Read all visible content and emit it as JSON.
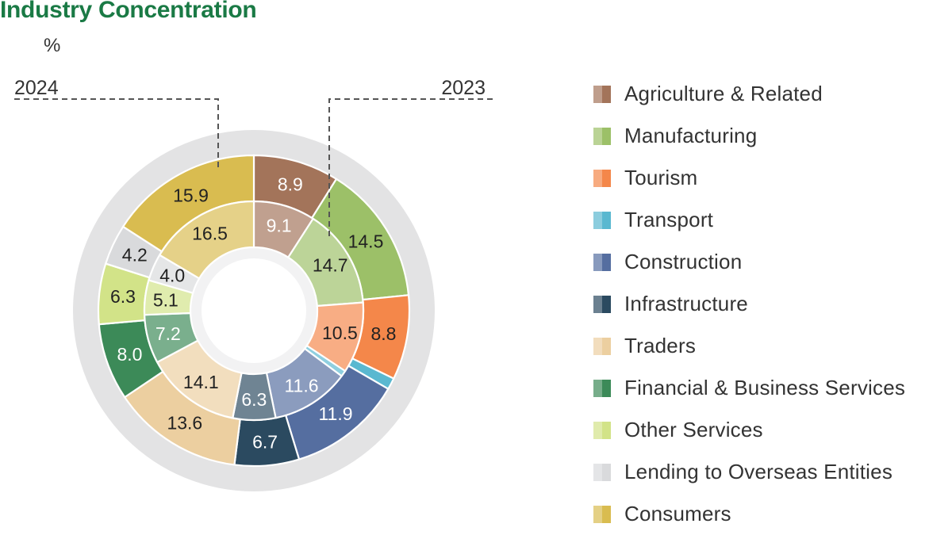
{
  "header": {
    "title": "Industry Concentration",
    "unit": "%"
  },
  "chart_data": {
    "type": "donut",
    "title": "Industry Concentration",
    "unit": "%",
    "rings": [
      {
        "name": "2024",
        "position": "outer"
      },
      {
        "name": "2023",
        "position": "inner"
      }
    ],
    "categories": [
      "Agriculture & Related",
      "Manufacturing",
      "Tourism",
      "Transport",
      "Construction",
      "Infrastructure",
      "Traders",
      "Financial & Business Services",
      "Other Services",
      "Lending to Overseas Entities",
      "Consumers"
    ],
    "colors": [
      "#a3745a",
      "#9cc068",
      "#f4874a",
      "#5ab8d0",
      "#556ea0",
      "#2b4a60",
      "#eccfa0",
      "#3c8a58",
      "#d2e388",
      "#d9dadc",
      "#d9bc50"
    ],
    "series": [
      {
        "name": "2024",
        "values": [
          8.9,
          14.5,
          8.8,
          1.2,
          11.9,
          6.7,
          13.6,
          8.0,
          6.3,
          4.2,
          15.9
        ]
      },
      {
        "name": "2023",
        "values": [
          9.1,
          14.7,
          10.5,
          0.9,
          11.6,
          6.3,
          14.1,
          7.2,
          5.1,
          4.0,
          16.5
        ]
      }
    ],
    "value_labels_2024": [
      "8.9",
      "14.5",
      "8.8",
      "1.2",
      "11.9",
      "6.7",
      "13.6",
      "8.0",
      "6.3",
      "4.2",
      "15.9"
    ],
    "value_labels_2023": [
      "9.1",
      "14.7",
      "10.5",
      "0.9",
      "11.6",
      "6.3",
      "14.1",
      "7.2",
      "5.1",
      "4.0",
      "16.5"
    ],
    "legend_position": "right"
  }
}
